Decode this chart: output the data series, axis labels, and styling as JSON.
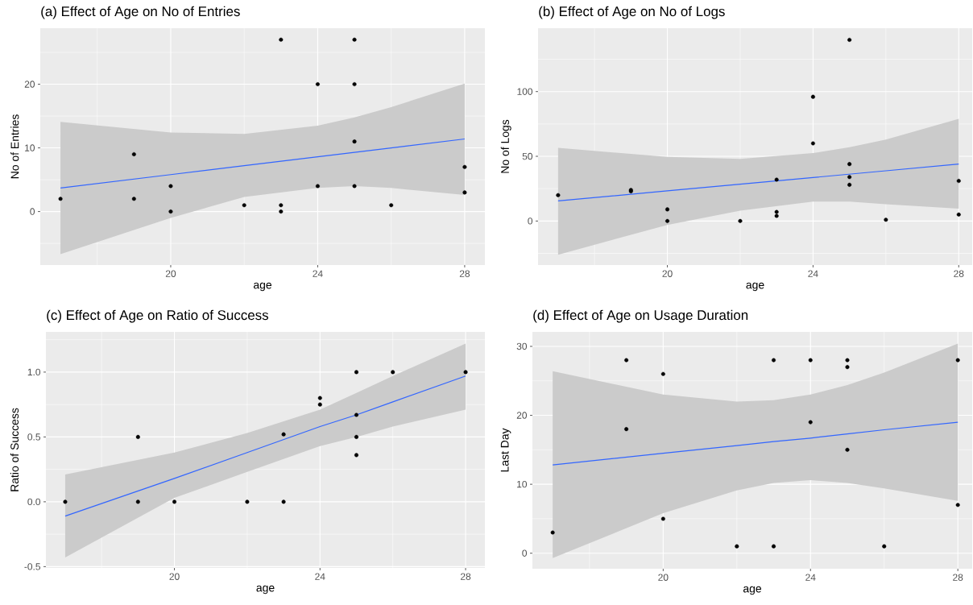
{
  "chart_data": [
    {
      "type": "scatter",
      "title": "(a) Effect of Age on No of Entries",
      "xlabel": "age",
      "ylabel": "No of Entries",
      "xlim": [
        16.45,
        28.55
      ],
      "ylim": [
        -8.4,
        28.8
      ],
      "xticks": [
        20,
        24,
        28
      ],
      "yticks": [
        0,
        10,
        20
      ],
      "grid": true,
      "series": [
        {
          "marker": "circle",
          "color": "#000000",
          "x": [
            17,
            19,
            19,
            20,
            20,
            22,
            23,
            23,
            23,
            24,
            24,
            25,
            25,
            25,
            25,
            26,
            28,
            28
          ],
          "values": [
            2,
            9,
            2,
            4,
            0,
            1,
            27,
            1,
            0,
            20,
            4,
            27,
            20,
            11,
            4,
            1,
            7,
            3
          ]
        },
        {
          "type": "line",
          "color": "#3366ff",
          "x": [
            17,
            20,
            22,
            24,
            25,
            26,
            28
          ],
          "values": [
            3.7,
            5.8,
            7.2,
            8.6,
            9.3,
            10.0,
            11.4
          ],
          "lower": [
            -6.7,
            -1,
            2.3,
            3.7,
            4,
            3.7,
            2.6
          ],
          "upper": [
            14.1,
            12.4,
            12.2,
            13.5,
            14.8,
            16.4,
            20.1
          ]
        }
      ]
    },
    {
      "type": "scatter",
      "title": "(b) Effect of Age on No of Logs",
      "xlabel": "age",
      "ylabel": "No of Logs",
      "xlim": [
        16.45,
        28.37
      ],
      "ylim": [
        -34,
        149
      ],
      "xticks": [
        20,
        24,
        28
      ],
      "yticks": [
        0,
        50,
        100
      ],
      "grid": true,
      "series": [
        {
          "marker": "circle",
          "color": "#000000",
          "x": [
            17,
            19,
            19,
            20,
            20,
            22,
            23,
            23,
            23,
            24,
            24,
            25,
            25,
            25,
            25,
            26,
            28,
            28
          ],
          "values": [
            20,
            24,
            23,
            9,
            0,
            0,
            32,
            7,
            4,
            96,
            60,
            140,
            44,
            34,
            28,
            1,
            31,
            5
          ]
        },
        {
          "type": "line",
          "color": "#3366ff",
          "x": [
            17,
            20,
            22,
            24,
            25,
            26,
            28
          ],
          "values": [
            15.5,
            23.3,
            28.5,
            33.6,
            36.2,
            38.8,
            44
          ],
          "lower": [
            -26,
            -3,
            8,
            15,
            15,
            13,
            9.5
          ],
          "upper": [
            56.5,
            49.5,
            48,
            52.5,
            57,
            63,
            79
          ]
        }
      ]
    },
    {
      "type": "scatter",
      "title": "(c) Effect of Age on Ratio of Success",
      "xlabel": "age",
      "ylabel": "Ratio of Success",
      "xlim": [
        16.47,
        28.53
      ],
      "ylim": [
        -0.51,
        1.31
      ],
      "xticks": [
        20,
        24,
        28
      ],
      "yticks": [
        {
          "value": -0.5,
          "label": "-0.5"
        },
        {
          "value": 0,
          "label": "0.0"
        },
        {
          "value": 0.5,
          "label": "0.5"
        },
        {
          "value": 1,
          "label": "1.0"
        }
      ],
      "grid": true,
      "series": [
        {
          "marker": "circle",
          "color": "#000000",
          "x": [
            17,
            19,
            19,
            20,
            22,
            23,
            23,
            24,
            24,
            25,
            25,
            25,
            25,
            26,
            28
          ],
          "values": [
            0,
            0.5,
            0,
            0,
            0,
            0.52,
            0,
            0.8,
            0.75,
            1,
            0.67,
            0.5,
            0.36,
            1,
            1
          ]
        },
        {
          "type": "line",
          "color": "#3366ff",
          "x": [
            17,
            20,
            22,
            24,
            25,
            26,
            28
          ],
          "values": [
            -0.11,
            0.18,
            0.38,
            0.58,
            0.67,
            0.77,
            0.97
          ],
          "lower": [
            -0.43,
            0.03,
            0.23,
            0.43,
            0.5,
            0.58,
            0.71
          ],
          "upper": [
            0.21,
            0.38,
            0.53,
            0.71,
            0.84,
            0.97,
            1.22
          ]
        }
      ]
    },
    {
      "type": "scatter",
      "title": "(d) Effect of Age on Usage Duration",
      "xlabel": "age",
      "ylabel": "Last Day",
      "xlim": [
        16.45,
        28.39
      ],
      "ylim": [
        -2.25,
        32.1
      ],
      "xticks": [
        20,
        24,
        28
      ],
      "yticks": [
        0,
        10,
        20,
        30
      ],
      "grid": true,
      "series": [
        {
          "marker": "circle",
          "color": "#000000",
          "x": [
            17,
            19,
            19,
            20,
            20,
            22,
            23,
            23,
            24,
            24,
            25,
            25,
            25,
            26,
            28,
            28
          ],
          "values": [
            3,
            28,
            18,
            26,
            5,
            1,
            28,
            1,
            28,
            19,
            28,
            27,
            15,
            1,
            28,
            7
          ]
        },
        {
          "type": "line",
          "color": "#3366ff",
          "x": [
            17,
            20,
            22,
            23,
            24,
            25,
            26,
            28
          ],
          "values": [
            12.8,
            14.5,
            15.6,
            16.2,
            16.7,
            17.3,
            17.9,
            19.0
          ],
          "lower": [
            -0.7,
            5.8,
            9.1,
            10.2,
            10.6,
            10.2,
            9.4,
            7.6
          ],
          "upper": [
            26.4,
            23.0,
            22.0,
            22.2,
            23.0,
            24.4,
            26.2,
            30.4
          ]
        }
      ]
    }
  ]
}
